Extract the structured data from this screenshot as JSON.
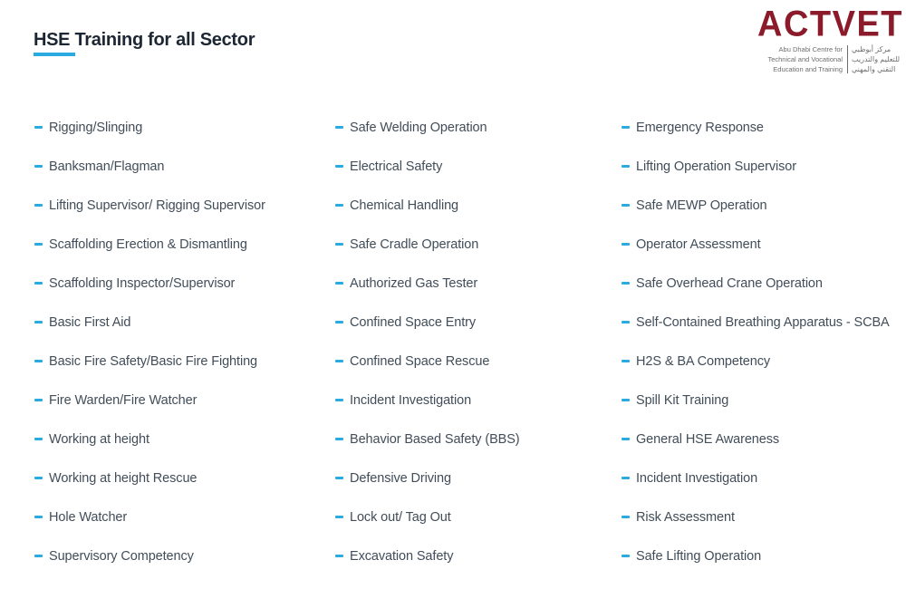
{
  "page": {
    "title": "HSE Training for all Sector"
  },
  "logo": {
    "brand": "ACTVET",
    "tagline_lines": {
      "0": "Abu Dhabi Centre for",
      "1": "Technical and Vocational",
      "2": "Education and Training"
    },
    "arabic_lines": {
      "0": "مركز أبوظبي",
      "1": "للتعليم والتدريب",
      "2": "التقني والمهني"
    }
  },
  "colors": {
    "accent-blue": "#29ABE2",
    "title-text": "#1C2733",
    "item-text": "#414D59",
    "brand-maroon": "#8B1B2B",
    "logo-gray": "#6D6E71"
  },
  "lists": [
    {
      "items": [
        "Rigging/Slinging",
        "Banksman/Flagman",
        "Lifting Supervisor/ Rigging Supervisor",
        "Scaffolding Erection & Dismantling",
        "Scaffolding Inspector/Supervisor",
        "Basic First Aid",
        "Basic Fire Safety/Basic Fire Fighting",
        "Fire Warden/Fire Watcher",
        "Working at height",
        "Working at height Rescue",
        "Hole Watcher",
        "Supervisory Competency"
      ]
    },
    {
      "items": [
        "Safe Welding Operation",
        "Electrical Safety",
        "Chemical Handling",
        "Safe Cradle Operation",
        "Authorized Gas Tester",
        "Confined Space Entry",
        "Confined Space Rescue",
        "Incident Investigation",
        "Behavior Based Safety (BBS)",
        "Defensive Driving",
        "Lock out/ Tag Out",
        "Excavation Safety"
      ]
    },
    {
      "items": [
        "Emergency Response",
        "Lifting Operation Supervisor",
        "Safe MEWP Operation",
        "Operator Assessment",
        "Safe Overhead Crane Operation",
        "Self-Contained Breathing Apparatus - SCBA",
        "H2S & BA Competency",
        "Spill Kit Training",
        "General HSE Awareness",
        "Incident Investigation",
        "Risk Assessment",
        "Safe Lifting Operation"
      ]
    }
  ]
}
